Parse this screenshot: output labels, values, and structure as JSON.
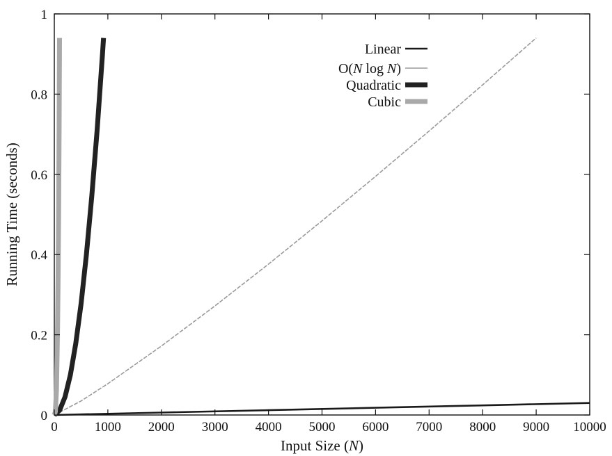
{
  "chart_data": {
    "type": "line",
    "title": "",
    "xlabel": {
      "prefix": "Input Size (",
      "var": "N",
      "suffix": ")"
    },
    "ylabel": "Running Time (seconds)",
    "xlim": [
      0,
      10000
    ],
    "ylim": [
      0,
      1
    ],
    "x_ticks": [
      0,
      1000,
      2000,
      3000,
      4000,
      5000,
      6000,
      7000,
      8000,
      9000,
      10000
    ],
    "x_tick_labels": [
      "0",
      "1000",
      "2000",
      "3000",
      "4000",
      "5000",
      "6000",
      "7000",
      "8000",
      "9000",
      "10000"
    ],
    "y_ticks": [
      0,
      0.2,
      0.4,
      0.6,
      0.8,
      1
    ],
    "y_tick_labels": [
      "0",
      "0.2",
      "0.4",
      "0.6",
      "0.8",
      "1"
    ],
    "grid": false,
    "legend_position": "top-right",
    "series": [
      {
        "name": "Linear",
        "legend_parts": [
          {
            "t": "Linear",
            "i": false
          }
        ],
        "color": "#1a1a1a",
        "style": "medium",
        "x": [
          0,
          2000,
          4000,
          6000,
          8000,
          10000
        ],
        "y": [
          0,
          0.006,
          0.012,
          0.018,
          0.024,
          0.03
        ]
      },
      {
        "name": "O(N log N)",
        "legend_parts": [
          {
            "t": "O(",
            "i": false
          },
          {
            "t": "N",
            "i": true
          },
          {
            "t": " log ",
            "i": false
          },
          {
            "t": "N",
            "i": true
          },
          {
            "t": ")",
            "i": false
          }
        ],
        "color": "#9a9a9a",
        "style": "thin",
        "x": [
          0,
          500,
          1000,
          2000,
          3000,
          4000,
          5000,
          6000,
          7000,
          8000,
          9000
        ],
        "y": [
          0,
          0.035,
          0.078,
          0.172,
          0.272,
          0.376,
          0.484,
          0.595,
          0.708,
          0.823,
          0.94
        ]
      },
      {
        "name": "Quadratic",
        "legend_parts": [
          {
            "t": "Quadratic",
            "i": false
          }
        ],
        "color": "#222222",
        "style": "thick",
        "x": [
          0,
          100,
          200,
          300,
          400,
          500,
          600,
          700,
          800,
          900,
          920
        ],
        "y": [
          0,
          0.012,
          0.045,
          0.1,
          0.178,
          0.278,
          0.4,
          0.545,
          0.71,
          0.9,
          0.94
        ]
      },
      {
        "name": "Cubic",
        "legend_parts": [
          {
            "t": "Cubic",
            "i": false
          }
        ],
        "color": "#a9a9a9",
        "style": "thick",
        "x": [
          0,
          20,
          40,
          60,
          70,
          80,
          90,
          98
        ],
        "y": [
          0,
          0.008,
          0.062,
          0.21,
          0.334,
          0.5,
          0.71,
          0.94
        ]
      }
    ]
  }
}
